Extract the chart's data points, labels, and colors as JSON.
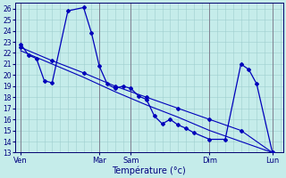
{
  "background_color": "#c5ecea",
  "grid_color": "#9ecece",
  "line_color": "#0000bb",
  "marker_color": "#0000bb",
  "ylim": [
    13,
    26.5
  ],
  "ytick_vals": [
    13,
    14,
    15,
    16,
    17,
    18,
    19,
    20,
    21,
    22,
    23,
    24,
    25,
    26
  ],
  "xlabel": "Température (°c)",
  "day_labels": [
    "Ven",
    "Mar",
    "Sam",
    "Dim",
    "Lun"
  ],
  "day_x": [
    0,
    60,
    84,
    144,
    192
  ],
  "xlim": [
    -4,
    200
  ],
  "num_x_grid": 200,
  "x_grid_step": 6,
  "vline_color": "#808090",
  "axis_color": "#000070",
  "tick_color": "#000070",
  "label_color": "#000080",
  "xlabel_fontsize": 7,
  "tick_fontsize": 5.5,
  "day_fontsize": 6.0,
  "line1_x": [
    0,
    6,
    12,
    18,
    24,
    36,
    48,
    54,
    60,
    66,
    72,
    78,
    84,
    90,
    96,
    102,
    108,
    114,
    120,
    126,
    132,
    144,
    156,
    168,
    174,
    180,
    192
  ],
  "line1_y": [
    22.8,
    21.8,
    21.5,
    19.5,
    19.3,
    25.8,
    26.1,
    23.8,
    20.8,
    19.2,
    18.8,
    19.0,
    18.8,
    18.1,
    17.8,
    16.3,
    15.6,
    16.0,
    15.5,
    15.2,
    14.8,
    14.2,
    14.2,
    21.0,
    20.5,
    19.2,
    13.0
  ],
  "line2_x": [
    0,
    24,
    48,
    72,
    96,
    120,
    144,
    168,
    192
  ],
  "line2_y": [
    22.5,
    21.3,
    20.2,
    19.0,
    18.0,
    17.0,
    16.0,
    15.0,
    13.0
  ],
  "line3_x": [
    0,
    24,
    48,
    72,
    96,
    120,
    144,
    168,
    192
  ],
  "line3_y": [
    22.2,
    21.0,
    19.8,
    18.5,
    17.3,
    16.2,
    15.0,
    14.0,
    13.0
  ]
}
